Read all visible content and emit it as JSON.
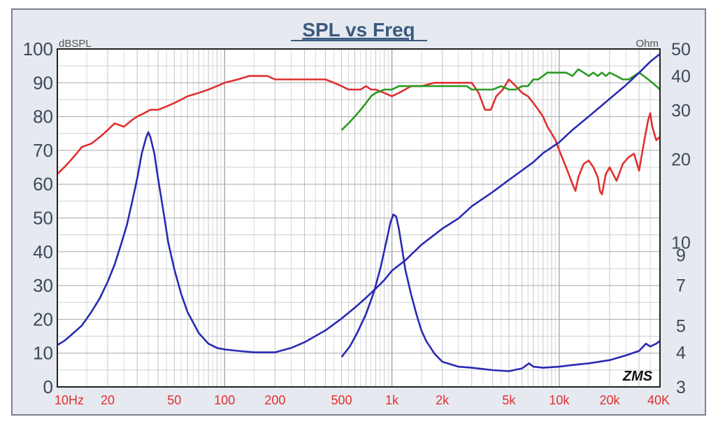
{
  "chart_data": {
    "type": "line",
    "title": "SPL vs Freq",
    "left_axis_unit": "dBSPL",
    "right_axis_unit": "Ohm",
    "watermark": "ZMS",
    "x_scale": "log",
    "xlim": [
      10,
      40000
    ],
    "ylim_left": [
      0,
      100
    ],
    "ylim_right": [
      3,
      50
    ],
    "y_scale_right": "log",
    "grid": true,
    "x_ticks": [
      {
        "label": "10Hz",
        "value": 10
      },
      {
        "label": "20",
        "value": 20
      },
      {
        "label": "50",
        "value": 50
      },
      {
        "label": "100",
        "value": 100
      },
      {
        "label": "200",
        "value": 200
      },
      {
        "label": "500",
        "value": 500
      },
      {
        "label": "1k",
        "value": 1000
      },
      {
        "label": "2k",
        "value": 2000
      },
      {
        "label": "5k",
        "value": 5000
      },
      {
        "label": "10k",
        "value": 10000
      },
      {
        "label": "20k",
        "value": 20000
      },
      {
        "label": "40K",
        "value": 40000
      }
    ],
    "y_ticks_left": [
      "0",
      "10",
      "20",
      "30",
      "40",
      "50",
      "60",
      "70",
      "80",
      "90",
      "100"
    ],
    "y_ticks_right": [
      {
        "label": "50",
        "value": 50
      },
      {
        "label": "40",
        "value": 40
      },
      {
        "label": "30",
        "value": 30
      },
      {
        "label": "20",
        "value": 20
      },
      {
        "label": "10",
        "value": 10
      },
      {
        "label": "9",
        "value": 9
      },
      {
        "label": "7",
        "value": 7
      },
      {
        "label": "5",
        "value": 5
      },
      {
        "label": "4",
        "value": 4
      },
      {
        "label": "3",
        "value": 3
      }
    ],
    "series": [
      {
        "color": "#e03030",
        "axis": "left",
        "points": [
          [
            10,
            63
          ],
          [
            11,
            65
          ],
          [
            12,
            67
          ],
          [
            13,
            69
          ],
          [
            14,
            71
          ],
          [
            16,
            72
          ],
          [
            18,
            74
          ],
          [
            20,
            76
          ],
          [
            22,
            78
          ],
          [
            25,
            77
          ],
          [
            28,
            79
          ],
          [
            30,
            80
          ],
          [
            33,
            81
          ],
          [
            36,
            82
          ],
          [
            40,
            82
          ],
          [
            45,
            83
          ],
          [
            50,
            84
          ],
          [
            55,
            85
          ],
          [
            60,
            86
          ],
          [
            70,
            87
          ],
          [
            80,
            88
          ],
          [
            90,
            89
          ],
          [
            100,
            90
          ],
          [
            120,
            91
          ],
          [
            140,
            92
          ],
          [
            160,
            92
          ],
          [
            180,
            92
          ],
          [
            200,
            91
          ],
          [
            250,
            91
          ],
          [
            300,
            91
          ],
          [
            350,
            91
          ],
          [
            400,
            91
          ],
          [
            450,
            90
          ],
          [
            500,
            89
          ],
          [
            550,
            88
          ],
          [
            600,
            88
          ],
          [
            650,
            88
          ],
          [
            700,
            89
          ],
          [
            750,
            88
          ],
          [
            800,
            88
          ],
          [
            900,
            87
          ],
          [
            1000,
            86
          ],
          [
            1100,
            87
          ],
          [
            1200,
            88
          ],
          [
            1300,
            89
          ],
          [
            1500,
            89
          ],
          [
            1800,
            90
          ],
          [
            2000,
            90
          ],
          [
            2500,
            90
          ],
          [
            3000,
            90
          ],
          [
            3300,
            87
          ],
          [
            3600,
            82
          ],
          [
            3900,
            82
          ],
          [
            4200,
            86
          ],
          [
            4600,
            88
          ],
          [
            5000,
            91
          ],
          [
            5500,
            89
          ],
          [
            6000,
            87
          ],
          [
            6500,
            86
          ],
          [
            7000,
            84
          ],
          [
            7500,
            82
          ],
          [
            8000,
            80
          ],
          [
            8500,
            77
          ],
          [
            9000,
            75
          ],
          [
            9500,
            73
          ],
          [
            10000,
            70
          ],
          [
            11000,
            65
          ],
          [
            12000,
            60
          ],
          [
            12500,
            58
          ],
          [
            13000,
            62
          ],
          [
            14000,
            66
          ],
          [
            15000,
            67
          ],
          [
            16000,
            65
          ],
          [
            17000,
            62
          ],
          [
            17500,
            58
          ],
          [
            18000,
            57
          ],
          [
            19000,
            63
          ],
          [
            20000,
            65
          ],
          [
            22000,
            61
          ],
          [
            24000,
            66
          ],
          [
            26000,
            68
          ],
          [
            28000,
            69
          ],
          [
            30000,
            64
          ],
          [
            32000,
            72
          ],
          [
            34000,
            79
          ],
          [
            35000,
            81
          ],
          [
            36000,
            77
          ],
          [
            38000,
            73
          ],
          [
            40000,
            74
          ]
        ]
      },
      {
        "color": "#2a9a22",
        "axis": "left",
        "points": [
          [
            500,
            76
          ],
          [
            550,
            78
          ],
          [
            600,
            80
          ],
          [
            650,
            82
          ],
          [
            700,
            84
          ],
          [
            750,
            86
          ],
          [
            800,
            87
          ],
          [
            900,
            88
          ],
          [
            1000,
            88
          ],
          [
            1100,
            89
          ],
          [
            1200,
            89
          ],
          [
            1400,
            89
          ],
          [
            1600,
            89
          ],
          [
            1800,
            89
          ],
          [
            2000,
            89
          ],
          [
            2200,
            89
          ],
          [
            2500,
            89
          ],
          [
            2800,
            89
          ],
          [
            3000,
            88
          ],
          [
            3500,
            88
          ],
          [
            4000,
            88
          ],
          [
            4500,
            89
          ],
          [
            5000,
            88
          ],
          [
            5500,
            88
          ],
          [
            6000,
            89
          ],
          [
            6500,
            89
          ],
          [
            7000,
            91
          ],
          [
            7500,
            91
          ],
          [
            8000,
            92
          ],
          [
            8500,
            93
          ],
          [
            9000,
            93
          ],
          [
            10000,
            93
          ],
          [
            11000,
            93
          ],
          [
            12000,
            92
          ],
          [
            13000,
            94
          ],
          [
            14000,
            93
          ],
          [
            15000,
            92
          ],
          [
            16000,
            93
          ],
          [
            17000,
            92
          ],
          [
            18000,
            93
          ],
          [
            19000,
            92
          ],
          [
            20000,
            93
          ],
          [
            22000,
            92
          ],
          [
            24000,
            91
          ],
          [
            26000,
            91
          ],
          [
            28000,
            92
          ],
          [
            30000,
            93
          ],
          [
            32000,
            92
          ],
          [
            34000,
            91
          ],
          [
            36000,
            90
          ],
          [
            38000,
            89
          ],
          [
            40000,
            88
          ]
        ]
      },
      {
        "color": "#2a2ab4",
        "axis": "right",
        "points": [
          [
            10,
            4.25
          ],
          [
            11,
            4.4
          ],
          [
            12,
            4.6
          ],
          [
            14,
            5.0
          ],
          [
            16,
            5.6
          ],
          [
            18,
            6.3
          ],
          [
            20,
            7.2
          ],
          [
            22,
            8.3
          ],
          [
            24,
            9.8
          ],
          [
            26,
            11.5
          ],
          [
            28,
            14
          ],
          [
            30,
            17
          ],
          [
            32,
            21
          ],
          [
            34,
            24
          ],
          [
            35,
            25
          ],
          [
            36,
            24
          ],
          [
            38,
            21
          ],
          [
            40,
            17
          ],
          [
            43,
            13
          ],
          [
            46,
            10
          ],
          [
            50,
            8
          ],
          [
            55,
            6.5
          ],
          [
            60,
            5.6
          ],
          [
            70,
            4.7
          ],
          [
            80,
            4.3
          ],
          [
            90,
            4.15
          ],
          [
            100,
            4.1
          ],
          [
            120,
            4.05
          ],
          [
            150,
            4.0
          ],
          [
            180,
            4.0
          ],
          [
            200,
            4.0
          ],
          [
            250,
            4.15
          ],
          [
            300,
            4.35
          ],
          [
            400,
            4.8
          ],
          [
            500,
            5.3
          ],
          [
            600,
            5.8
          ],
          [
            700,
            6.3
          ],
          [
            800,
            6.8
          ],
          [
            900,
            7.3
          ],
          [
            1000,
            7.9
          ],
          [
            1200,
            8.6
          ],
          [
            1500,
            9.8
          ],
          [
            2000,
            11.2
          ],
          [
            2500,
            12.2
          ],
          [
            3000,
            13.5
          ],
          [
            4000,
            15.2
          ],
          [
            5000,
            16.8
          ],
          [
            6000,
            18.2
          ],
          [
            7000,
            19.5
          ],
          [
            8000,
            21
          ],
          [
            10000,
            23
          ],
          [
            12000,
            25.5
          ],
          [
            15000,
            28.5
          ],
          [
            20000,
            33
          ],
          [
            25000,
            37
          ],
          [
            30000,
            41
          ],
          [
            35000,
            45
          ],
          [
            40000,
            48
          ]
        ]
      },
      {
        "color": "#2a2ab4",
        "axis": "right",
        "points": [
          [
            500,
            3.85
          ],
          [
            560,
            4.2
          ],
          [
            620,
            4.7
          ],
          [
            700,
            5.5
          ],
          [
            780,
            6.6
          ],
          [
            860,
            8.2
          ],
          [
            930,
            10.2
          ],
          [
            980,
            11.8
          ],
          [
            1020,
            12.6
          ],
          [
            1060,
            12.4
          ],
          [
            1100,
            11.2
          ],
          [
            1150,
            9.5
          ],
          [
            1200,
            8.0
          ],
          [
            1300,
            6.5
          ],
          [
            1400,
            5.5
          ],
          [
            1500,
            4.8
          ],
          [
            1600,
            4.4
          ],
          [
            1800,
            3.95
          ],
          [
            2000,
            3.7
          ],
          [
            2500,
            3.55
          ],
          [
            3000,
            3.52
          ],
          [
            4000,
            3.45
          ],
          [
            5000,
            3.42
          ],
          [
            6000,
            3.5
          ],
          [
            6600,
            3.65
          ],
          [
            7000,
            3.55
          ],
          [
            8000,
            3.52
          ],
          [
            10000,
            3.55
          ],
          [
            12000,
            3.6
          ],
          [
            15000,
            3.65
          ],
          [
            20000,
            3.75
          ],
          [
            25000,
            3.9
          ],
          [
            30000,
            4.05
          ],
          [
            33000,
            4.3
          ],
          [
            35000,
            4.2
          ],
          [
            38000,
            4.3
          ],
          [
            40000,
            4.4
          ]
        ]
      }
    ]
  }
}
